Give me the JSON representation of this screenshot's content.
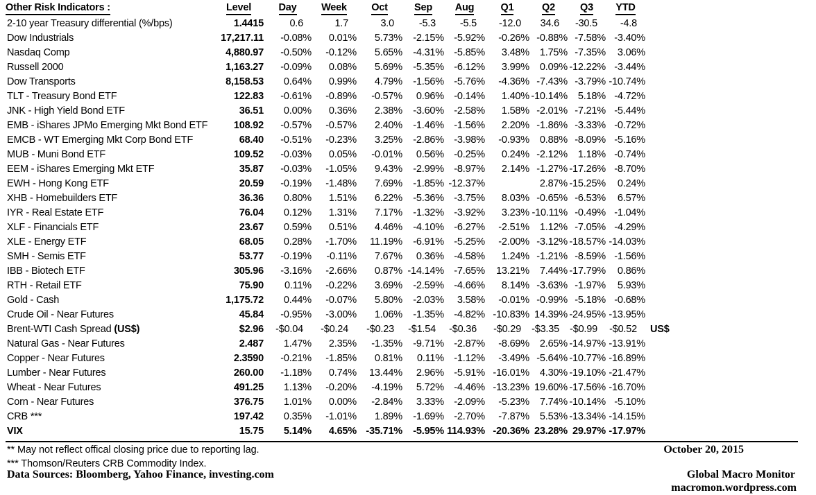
{
  "header": {
    "title": "Other Risk Indicators :",
    "columns": [
      "Level",
      "Day",
      "Week",
      "Oct",
      "Sep",
      "Aug",
      "Q1",
      "Q2",
      "Q3",
      "YTD"
    ]
  },
  "rows": [
    {
      "label": "2-10 year Treasury differential (%/bps)",
      "pad": true,
      "values": [
        "1.4415",
        "0.6",
        "1.7",
        "3.0",
        "-5.3",
        "-5.5",
        "-12.0",
        "34.6",
        "-30.5",
        "-4.8"
      ]
    },
    {
      "label": "Dow Industrials",
      "values": [
        "17,217.11",
        "-0.08%",
        "0.01%",
        "5.73%",
        "-2.15%",
        "-5.92%",
        "-0.26%",
        "-0.88%",
        "-7.58%",
        "-3.40%"
      ]
    },
    {
      "label": "Nasdaq Comp",
      "values": [
        "4,880.97",
        "-0.50%",
        "-0.12%",
        "5.65%",
        "-4.31%",
        "-5.85%",
        "3.48%",
        "1.75%",
        "-7.35%",
        "3.06%"
      ]
    },
    {
      "label": "Russell 2000",
      "values": [
        "1,163.27",
        "-0.09%",
        "0.08%",
        "5.69%",
        "-5.35%",
        "-6.12%",
        "3.99%",
        "0.09%",
        "-12.22%",
        "-3.44%"
      ]
    },
    {
      "label": "Dow Transports",
      "values": [
        "8,158.53",
        "0.64%",
        "0.99%",
        "4.79%",
        "-1.56%",
        "-5.76%",
        "-4.36%",
        "-7.43%",
        "-3.79%",
        "-10.74%"
      ]
    },
    {
      "label": "TLT - Treasury Bond ETF",
      "values": [
        "122.83",
        "-0.61%",
        "-0.89%",
        "-0.57%",
        "0.96%",
        "-0.14%",
        "1.40%",
        "-10.14%",
        "5.18%",
        "-4.72%"
      ]
    },
    {
      "label": "JNK - High Yield Bond ETF",
      "values": [
        "36.51",
        "0.00%",
        "0.36%",
        "2.38%",
        "-3.60%",
        "-2.58%",
        "1.58%",
        "-2.01%",
        "-7.21%",
        "-5.44%"
      ]
    },
    {
      "label": "EMB - iShares JPMo Emerging Mkt Bond ETF",
      "values": [
        "108.92",
        "-0.57%",
        "-0.57%",
        "2.40%",
        "-1.46%",
        "-1.56%",
        "2.20%",
        "-1.86%",
        "-3.33%",
        "-0.72%"
      ]
    },
    {
      "label": "EMCB - WT Emerging Mkt Corp Bond ETF",
      "values": [
        "68.40",
        "-0.51%",
        "-0.23%",
        "3.25%",
        "-2.86%",
        "-3.98%",
        "-0.93%",
        "0.88%",
        "-8.09%",
        "-5.16%"
      ]
    },
    {
      "label": "MUB - Muni Bond ETF",
      "values": [
        "109.52",
        "-0.03%",
        "0.05%",
        "-0.01%",
        "0.56%",
        "-0.25%",
        "0.24%",
        "-2.12%",
        "1.18%",
        "-0.74%"
      ]
    },
    {
      "label": "EEM - iShares Emerging Mkt ETF",
      "values": [
        "35.87",
        "-0.03%",
        "-1.05%",
        "9.43%",
        "-2.99%",
        "-8.97%",
        "2.14%",
        "-1.27%",
        "-17.26%",
        "-8.70%"
      ]
    },
    {
      "label": "EWH - Hong Kong ETF",
      "values": [
        "20.59",
        "-0.19%",
        "-1.48%",
        "7.69%",
        "-1.85%",
        "-12.37%",
        "",
        "2.87%",
        "-15.25%",
        "0.24%"
      ]
    },
    {
      "label": "XHB - Homebuilders ETF",
      "values": [
        "36.36",
        "0.80%",
        "1.51%",
        "6.22%",
        "-5.36%",
        "-3.75%",
        "8.03%",
        "-0.65%",
        "-6.53%",
        "6.57%"
      ]
    },
    {
      "label": "IYR - Real Estate ETF",
      "values": [
        "76.04",
        "0.12%",
        "1.31%",
        "7.17%",
        "-1.32%",
        "-3.92%",
        "3.23%",
        "-10.11%",
        "-0.49%",
        "-1.04%"
      ]
    },
    {
      "label": "XLF - Financials ETF",
      "values": [
        "23.67",
        "0.59%",
        "0.51%",
        "4.46%",
        "-4.10%",
        "-6.27%",
        "-2.51%",
        "1.12%",
        "-7.05%",
        "-4.29%"
      ]
    },
    {
      "label": "XLE - Energy ETF",
      "values": [
        "68.05",
        "0.28%",
        "-1.70%",
        "11.19%",
        "-6.91%",
        "-5.25%",
        "-2.00%",
        "-3.12%",
        "-18.57%",
        "-14.03%"
      ]
    },
    {
      "label": "SMH - Semis ETF",
      "values": [
        "53.77",
        "-0.19%",
        "-0.11%",
        "7.67%",
        "0.36%",
        "-4.58%",
        "1.24%",
        "-1.21%",
        "-8.59%",
        "-1.56%"
      ]
    },
    {
      "label": "IBB - Biotech ETF",
      "values": [
        "305.96",
        "-3.16%",
        "-2.66%",
        "0.87%",
        "-14.14%",
        "-7.65%",
        "13.21%",
        "7.44%",
        "-17.79%",
        "0.86%"
      ]
    },
    {
      "label": "RTH - Retail ETF",
      "values": [
        "75.90",
        "0.11%",
        "-0.22%",
        "3.69%",
        "-2.59%",
        "-4.66%",
        "8.14%",
        "-3.63%",
        "-1.97%",
        "5.93%"
      ]
    },
    {
      "label": "Gold - Cash",
      "values": [
        "1,175.72",
        "0.44%",
        "-0.07%",
        "5.80%",
        "-2.03%",
        "3.58%",
        "-0.01%",
        "-0.99%",
        "-5.18%",
        "-0.68%"
      ]
    },
    {
      "label": "Crude Oil - Near Futures",
      "values": [
        "45.84",
        "-0.95%",
        "-3.00%",
        "1.06%",
        "-1.35%",
        "-4.82%",
        "-10.83%",
        "14.39%",
        "-24.95%",
        "-13.95%"
      ]
    },
    {
      "label": "Brent-WTI Cash Spread ",
      "label_bold": "(US$)",
      "pad": true,
      "trailing": "US$",
      "values": [
        "$2.96",
        "-$0.04",
        "-$0.24",
        "-$0.23",
        "-$1.54",
        "-$0.36",
        "-$0.29",
        "-$3.35",
        "-$0.99",
        "-$0.52"
      ]
    },
    {
      "label": "Natural Gas - Near Futures",
      "values": [
        "2.487",
        "1.47%",
        "2.35%",
        "-1.35%",
        "-9.71%",
        "-2.87%",
        "-8.69%",
        "2.65%",
        "-14.97%",
        "-13.91%"
      ]
    },
    {
      "label": "Copper - Near Futures",
      "values": [
        "2.3590",
        "-0.21%",
        "-1.85%",
        "0.81%",
        "0.11%",
        "-1.12%",
        "-3.49%",
        "-5.64%",
        "-10.77%",
        "-16.89%"
      ]
    },
    {
      "label": "Lumber - Near Futures",
      "values": [
        "260.00",
        "-1.18%",
        "0.74%",
        "13.44%",
        "2.96%",
        "-5.91%",
        "-16.01%",
        "4.30%",
        "-19.10%",
        "-21.47%"
      ]
    },
    {
      "label": "Wheat - Near Futures",
      "values": [
        "491.25",
        "1.13%",
        "-0.20%",
        "-4.19%",
        "5.72%",
        "-4.46%",
        "-13.23%",
        "19.60%",
        "-17.56%",
        "-16.70%"
      ]
    },
    {
      "label": "Corn - Near Futures",
      "values": [
        "376.75",
        "1.01%",
        "0.00%",
        "-2.84%",
        "3.33%",
        "-2.09%",
        "-5.23%",
        "7.74%",
        "-10.14%",
        "-5.10%"
      ]
    },
    {
      "label": "CRB ***",
      "values": [
        "197.42",
        "0.35%",
        "-1.01%",
        "1.89%",
        "-1.69%",
        "-2.70%",
        "-7.87%",
        "5.53%",
        "-13.34%",
        "-14.15%"
      ]
    },
    {
      "label": "VIX",
      "bold": true,
      "values": [
        "15.75",
        "5.14%",
        "4.65%",
        "-35.71%",
        "-5.95%",
        "114.93%",
        "-20.36%",
        "23.28%",
        "29.97%",
        "-17.97%"
      ]
    }
  ],
  "footnotes": {
    "line1": "**  May not reflect offical closing price due to reporting lag.",
    "line2": "*** Thomson/Reuters CRB Commodity Index.",
    "data_sources": "Data Sources:  Bloomberg,  Yahoo Finance, investing.com"
  },
  "footer": {
    "date": "October 20, 2015",
    "source_name": "Global Macro Monitor",
    "source_url": "macromon.wordpress.com"
  }
}
